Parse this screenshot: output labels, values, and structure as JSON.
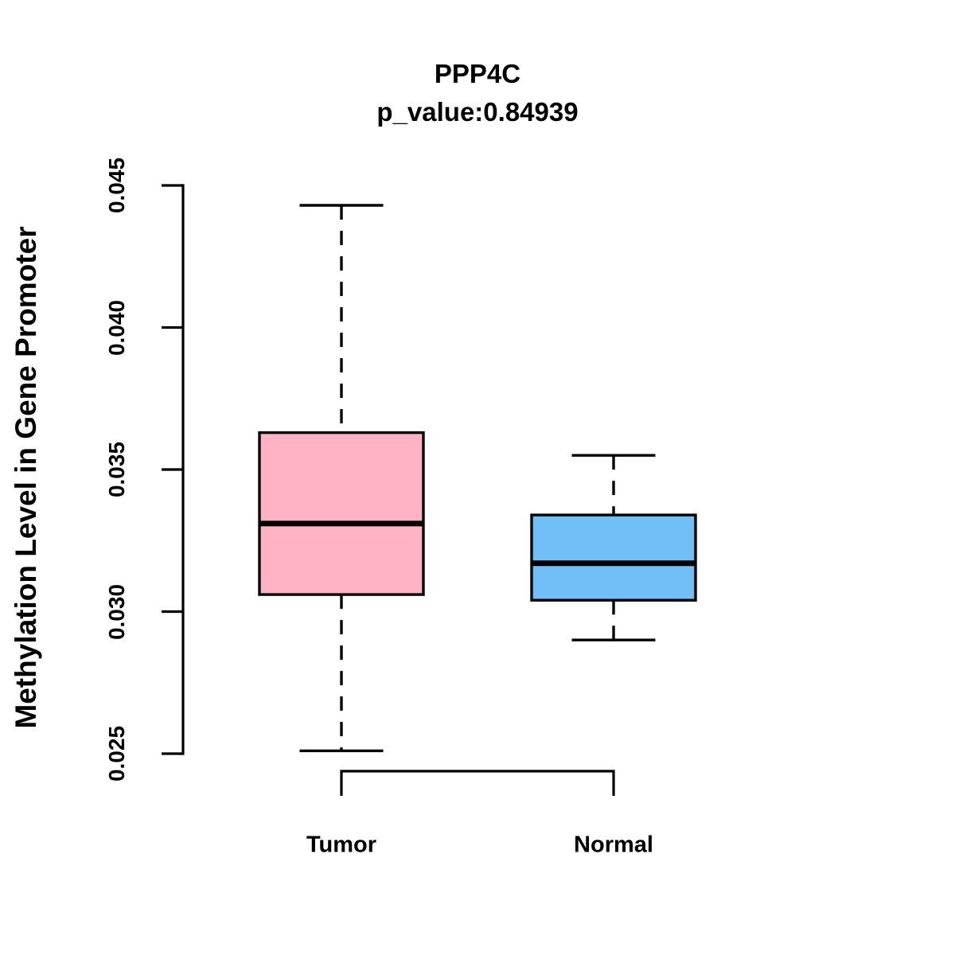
{
  "figure": {
    "title": "PPP4C",
    "subtitle": "p_value:0.84939",
    "ylabel": "Methylation Level in Gene Promoter"
  },
  "chart_data": {
    "type": "box",
    "title": "PPP4C",
    "subtitle": "p_value:0.84939",
    "xlabel": "",
    "ylabel": "Methylation Level in Gene Promoter",
    "categories": [
      "Tumor",
      "Normal"
    ],
    "yticks": [
      0.025,
      0.03,
      0.035,
      0.04,
      0.045
    ],
    "ytick_labels": [
      "0.025",
      "0.030",
      "0.035",
      "0.040",
      "0.045"
    ],
    "ylim": [
      0.025,
      0.045
    ],
    "grid": false,
    "legend": "none",
    "series": [
      {
        "name": "Tumor",
        "whisker_low": 0.0251,
        "q1": 0.0306,
        "median": 0.0331,
        "q3": 0.0363,
        "whisker_high": 0.0443,
        "fill_color": "#FFB3C5"
      },
      {
        "name": "Normal",
        "whisker_low": 0.029,
        "q1": 0.0304,
        "median": 0.0317,
        "q3": 0.0334,
        "whisker_high": 0.0355,
        "fill_color": "#72BEF6"
      }
    ],
    "colors": {
      "stroke": "#000000",
      "background": "#FFFFFF"
    }
  }
}
